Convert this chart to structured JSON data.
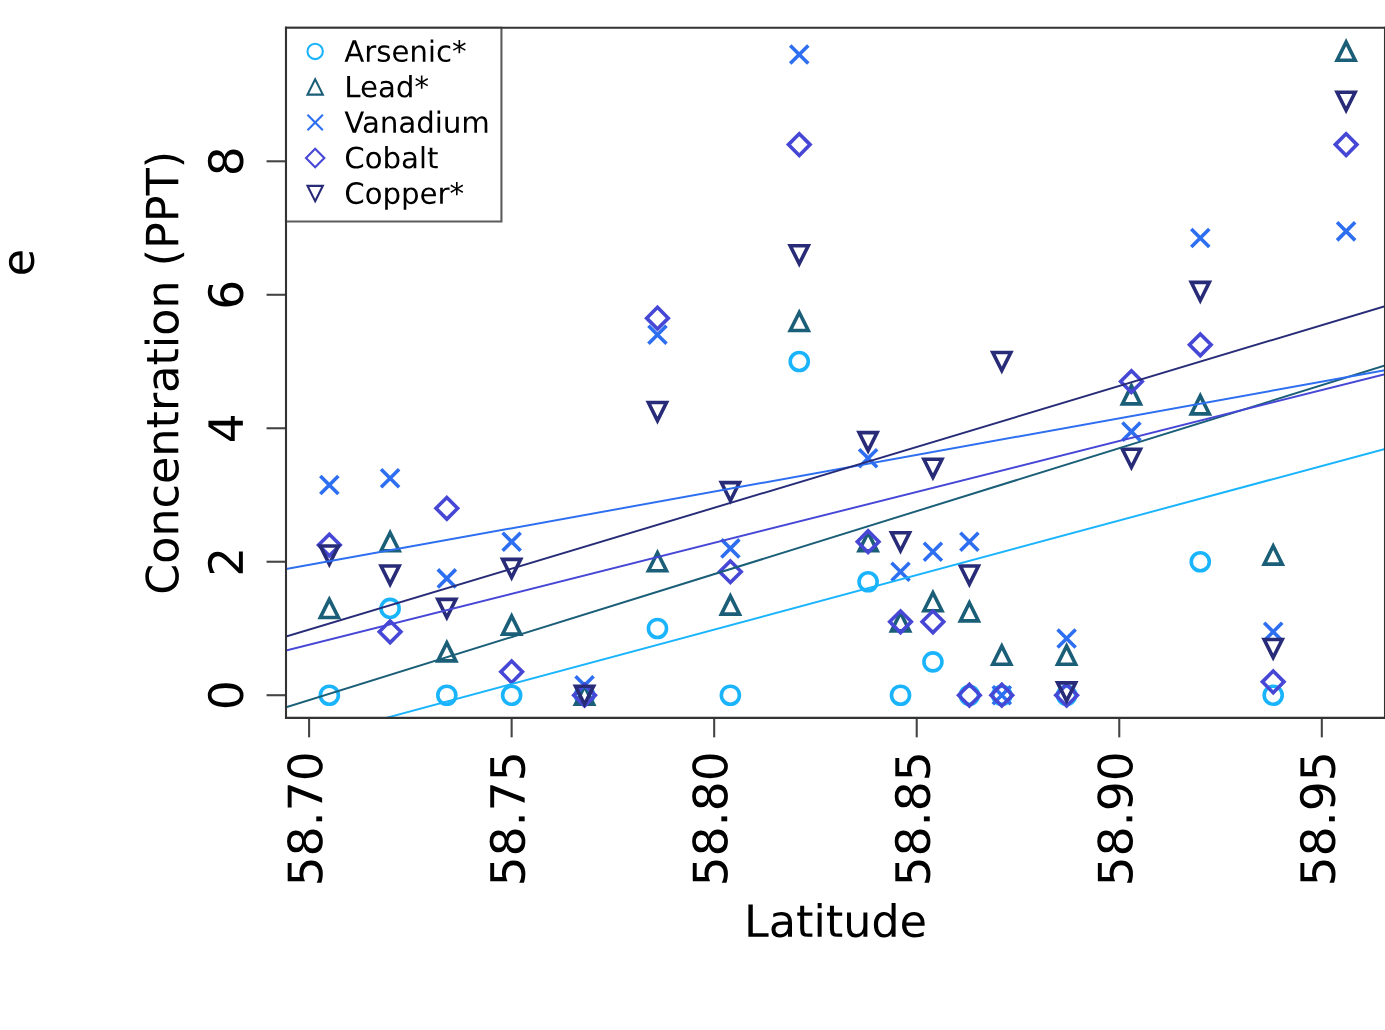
{
  "chart_data": {
    "type": "scatter",
    "xlabel": "Latitude",
    "ylabel": "Concentration (PPT)",
    "annotations": [
      "e"
    ],
    "xlim": [
      58.6943,
      58.9656
    ],
    "ylim": [
      -0.34,
      10.0
    ],
    "xticks": [
      {
        "value": 58.7,
        "label": "58.70"
      },
      {
        "value": 58.75,
        "label": "58.75"
      },
      {
        "value": 58.8,
        "label": "58.80"
      },
      {
        "value": 58.85,
        "label": "58.85"
      },
      {
        "value": 58.9,
        "label": "58.90"
      },
      {
        "value": 58.95,
        "label": "58.95"
      }
    ],
    "yticks": [
      0,
      2,
      4,
      6,
      8
    ],
    "grid": false,
    "legend": "top left",
    "x": [
      58.705,
      58.72,
      58.734,
      58.75,
      58.768,
      58.786,
      58.804,
      58.821,
      58.838,
      58.846,
      58.854,
      58.863,
      58.871,
      58.887,
      58.903,
      58.92,
      58.938,
      58.956
    ],
    "series": [
      {
        "name": "Arsenic*",
        "color": "#1ab4fc",
        "marker": "circle",
        "values": [
          0,
          1.3,
          0,
          0,
          0,
          1.0,
          0,
          5.0,
          1.7,
          0,
          0.5,
          0,
          0,
          0,
          null,
          2.0,
          0,
          null
        ]
      },
      {
        "name": "Lead*",
        "color": "#1a5e78",
        "marker": "triangle",
        "values": [
          1.3,
          2.3,
          0.65,
          1.05,
          0,
          2.0,
          1.35,
          5.6,
          2.3,
          1.1,
          1.4,
          1.25,
          0.6,
          0.6,
          4.5,
          4.35,
          2.1,
          9.65
        ]
      },
      {
        "name": "Vanadium",
        "color": "#2d6ff0",
        "marker": "cross",
        "values": [
          3.15,
          3.25,
          1.75,
          2.3,
          0.15,
          5.4,
          2.2,
          9.6,
          3.55,
          1.85,
          2.15,
          2.3,
          0,
          0.85,
          3.95,
          6.85,
          0.95,
          6.95
        ]
      },
      {
        "name": "Cobalt",
        "color": "#4747d6",
        "marker": "diamond",
        "values": [
          2.25,
          0.95,
          2.8,
          0.35,
          0,
          5.65,
          1.85,
          8.25,
          2.3,
          1.1,
          1.1,
          0,
          0,
          0,
          4.7,
          5.25,
          0.2,
          8.25
        ]
      },
      {
        "name": "Copper*",
        "color": "#282c78",
        "marker": "triangle_down",
        "values": [
          2.1,
          1.8,
          1.3,
          1.9,
          0,
          4.25,
          3.05,
          6.6,
          3.8,
          2.3,
          3.4,
          1.8,
          5.0,
          0.05,
          3.55,
          6.05,
          0.7,
          8.9
        ]
      },
      {
        "type": "line",
        "color": "#1ab4fc",
        "x": [
          58.719,
          58.9656
        ],
        "values": [
          -0.34,
          3.69
        ]
      },
      {
        "type": "line",
        "color": "#1a5e78",
        "x": [
          58.6943,
          58.9656
        ],
        "values": [
          -0.18,
          4.94
        ]
      },
      {
        "type": "line",
        "color": "#2d6ff0",
        "x": [
          58.6943,
          58.9656
        ],
        "values": [
          1.89,
          4.87
        ]
      },
      {
        "type": "line",
        "color": "#4747d6",
        "x": [
          58.6943,
          58.9656
        ],
        "values": [
          0.67,
          4.81
        ]
      },
      {
        "type": "line",
        "color": "#282c78",
        "x": [
          58.6943,
          58.9656
        ],
        "values": [
          0.88,
          5.83
        ]
      }
    ]
  }
}
